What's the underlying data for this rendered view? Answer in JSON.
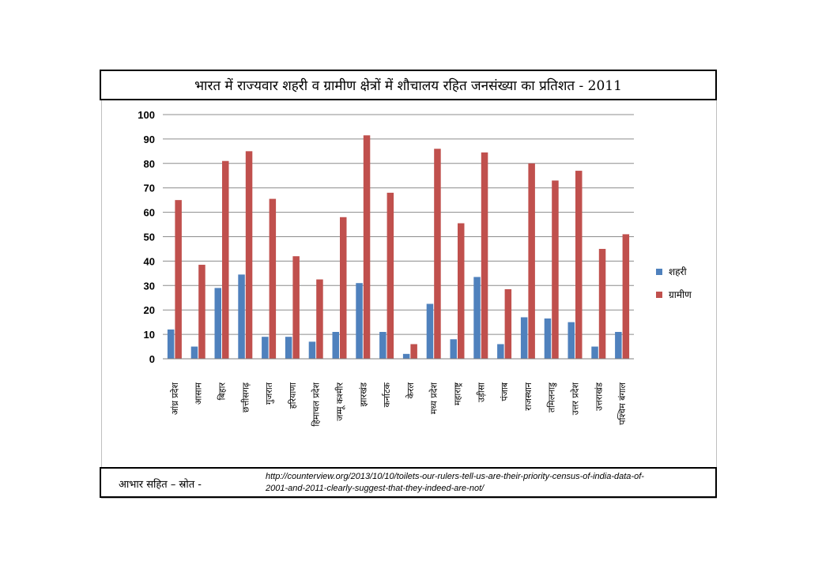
{
  "title": "भारत में राज्यवार शहरी व ग्रामीण क्षेत्रों में शौचालय रहित जनसंख्या का प्रतिशत - 2011",
  "source": {
    "label": "आभार सहित – स्रोत  -",
    "url": "http://counterview.org/2013/10/10/toilets-our-rulers-tell-us-are-their-priority-census-of-india-data-of-2001-and-2011-clearly-suggest-that-they-indeed-are-not/"
  },
  "colors": {
    "urban": "#4f81bd",
    "rural": "#c0504d",
    "grid": "#8c8c8c"
  },
  "chart_data": {
    "type": "bar",
    "title": "भारत में राज्यवार शहरी व ग्रामीण क्षेत्रों में शौचालय रहित जनसंख्या का प्रतिशत - 2011",
    "xlabel": "",
    "ylabel": "",
    "ylim": [
      0,
      100
    ],
    "yticks": [
      "0",
      "10",
      "20",
      "30",
      "40",
      "50",
      "60",
      "70",
      "80",
      "90",
      "100"
    ],
    "grid": true,
    "legend_position": "right",
    "categories": [
      "आंध्र प्रदेश",
      "आसाम",
      "बिहार",
      "छत्तीसगढ़",
      "गुजरात",
      "हरियाणा",
      "हिमाचल प्रदेश",
      "जम्मू कश्मीर",
      "झारखंड",
      "कर्नाटक",
      "केरल",
      "मध्य प्रदेश",
      "महाराष्ट्र",
      "उड़ीसा",
      "पंजाब",
      "राजस्थान",
      "तमिलनाडु",
      "उत्तर प्रदेश",
      "उत्तराखंड",
      "पश्चिम बंगाल"
    ],
    "series": [
      {
        "name": "शहरी",
        "values": [
          12,
          5,
          29,
          34.5,
          9,
          9,
          7,
          11,
          31,
          11,
          2,
          22.5,
          8,
          33.5,
          6,
          17,
          16.5,
          15,
          5,
          11
        ]
      },
      {
        "name": "ग्रामीण",
        "values": [
          65,
          38.5,
          81,
          85,
          65.5,
          42,
          32.5,
          58,
          91.5,
          68,
          6,
          86,
          55.5,
          84.5,
          28.5,
          80,
          73,
          77,
          45,
          51
        ]
      }
    ]
  }
}
